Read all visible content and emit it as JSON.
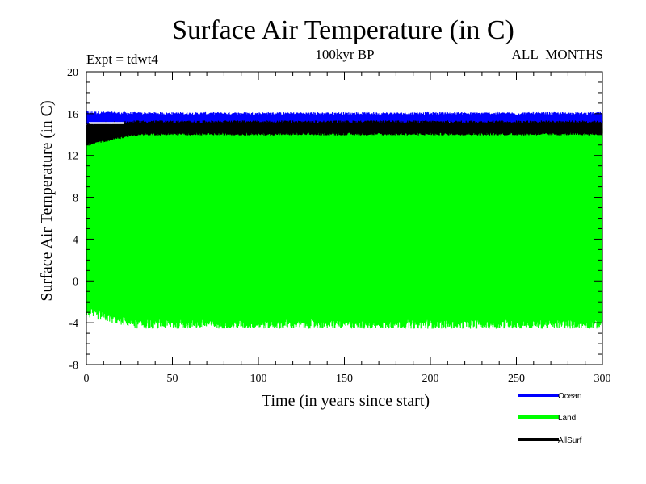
{
  "chart_data": {
    "type": "line",
    "title": "Surface Air Temperature (in C)",
    "subtitle": "100kyr BP",
    "experiment_label": "Expt = tdwt4",
    "months_label": "ALL_MONTHS",
    "xlabel": "Time (in years since start)",
    "ylabel": "Surface Air Temperature (in C)",
    "xlim": [
      0,
      300
    ],
    "ylim": [
      -8,
      20
    ],
    "x_ticks": [
      0,
      50,
      100,
      150,
      200,
      250,
      300
    ],
    "x_tick_labels": [
      "0",
      "50",
      "100",
      "150",
      "200",
      "250",
      "300"
    ],
    "y_ticks": [
      -8,
      -4,
      0,
      4,
      8,
      12,
      16,
      20
    ],
    "y_tick_labels": [
      "-8",
      "-4",
      "0",
      "4",
      "8",
      "12",
      "16",
      "20"
    ],
    "grid": false,
    "legend_position": "bottom-right, below plot",
    "series": [
      {
        "name": "Land",
        "color": "#00ff00",
        "band": {
          "min_early": -3.2,
          "min_late": -4.3,
          "max_early": 14.2,
          "max_late": 14.6
        },
        "description": "seasonal oscillation between approx -4 and 14.5"
      },
      {
        "name": "AllSurf",
        "color": "#000000",
        "band": {
          "min_early": 13.0,
          "min_late": 14.0,
          "max_early": 15.0,
          "max_late": 15.2
        },
        "description": "oscillation between approx 14 and 15"
      },
      {
        "name": "Ocean",
        "color": "#0000ff",
        "band": {
          "min_early": 14.9,
          "min_late": 15.0,
          "max_early": 16.1,
          "max_late": 16.0
        },
        "description": "oscillation between approx 15 and 16"
      }
    ],
    "early_white_gap": {
      "x_end": 22,
      "y": 15.1
    },
    "legend": [
      {
        "label": "Ocean",
        "color": "#0000ff"
      },
      {
        "label": "Land",
        "color": "#00ff00"
      },
      {
        "label": "AllSurf",
        "color": "#000000"
      }
    ]
  }
}
